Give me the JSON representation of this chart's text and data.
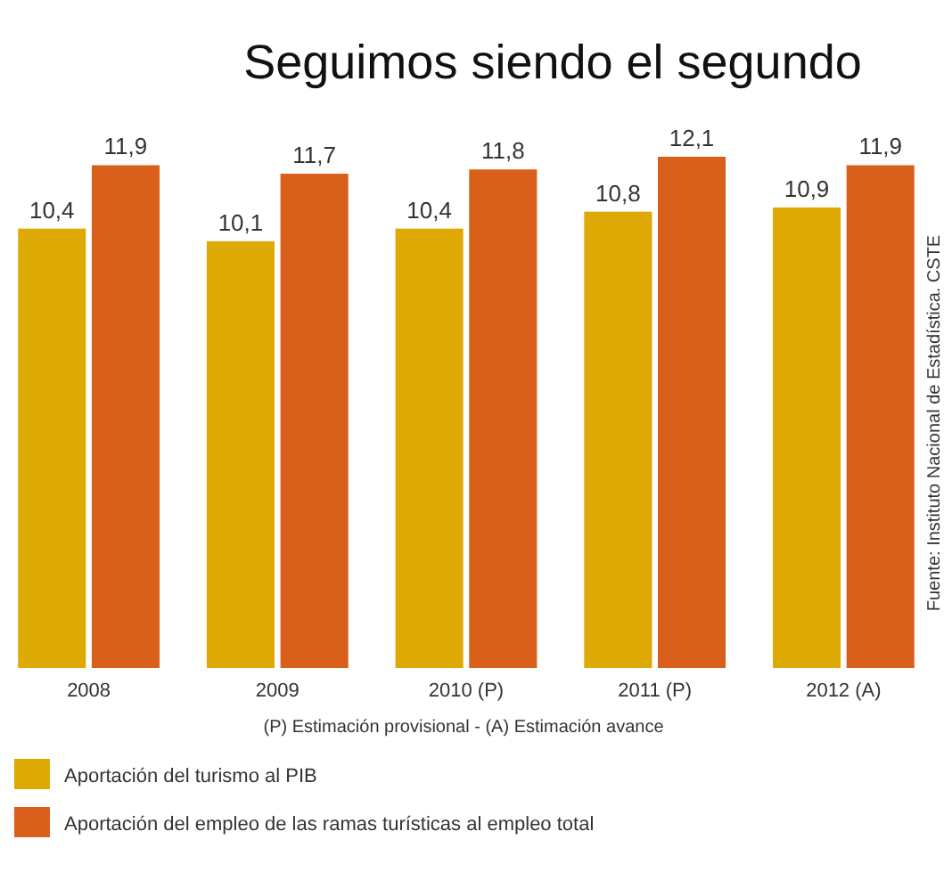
{
  "chart_data": {
    "type": "bar",
    "title": "Seguimos siendo el segundo",
    "categories": [
      "2008",
      "2009",
      "2010 (P)",
      "2011 (P)",
      "2012 (A)"
    ],
    "series": [
      {
        "name": "Aportación del turismo al PIB",
        "color": "#dea805",
        "values": [
          10.4,
          10.1,
          10.4,
          10.8,
          10.9
        ],
        "value_labels": [
          "10,4",
          "10,1",
          "10,4",
          "10,8",
          "10,9"
        ]
      },
      {
        "name": "Aportación del empleo de las ramas turísticas al empleo total",
        "color": "#d9601b",
        "values": [
          11.9,
          11.7,
          11.8,
          12.1,
          11.9
        ],
        "value_labels": [
          "11,9",
          "11,7",
          "11,8",
          "12,1",
          "11,9"
        ]
      }
    ],
    "legend": "bottom",
    "grid": false,
    "annotations": [
      "(P) Estimación provisional - (A) Estimación avance",
      "Fuente: Instituto Nacional de Estadística. CSTE"
    ]
  }
}
